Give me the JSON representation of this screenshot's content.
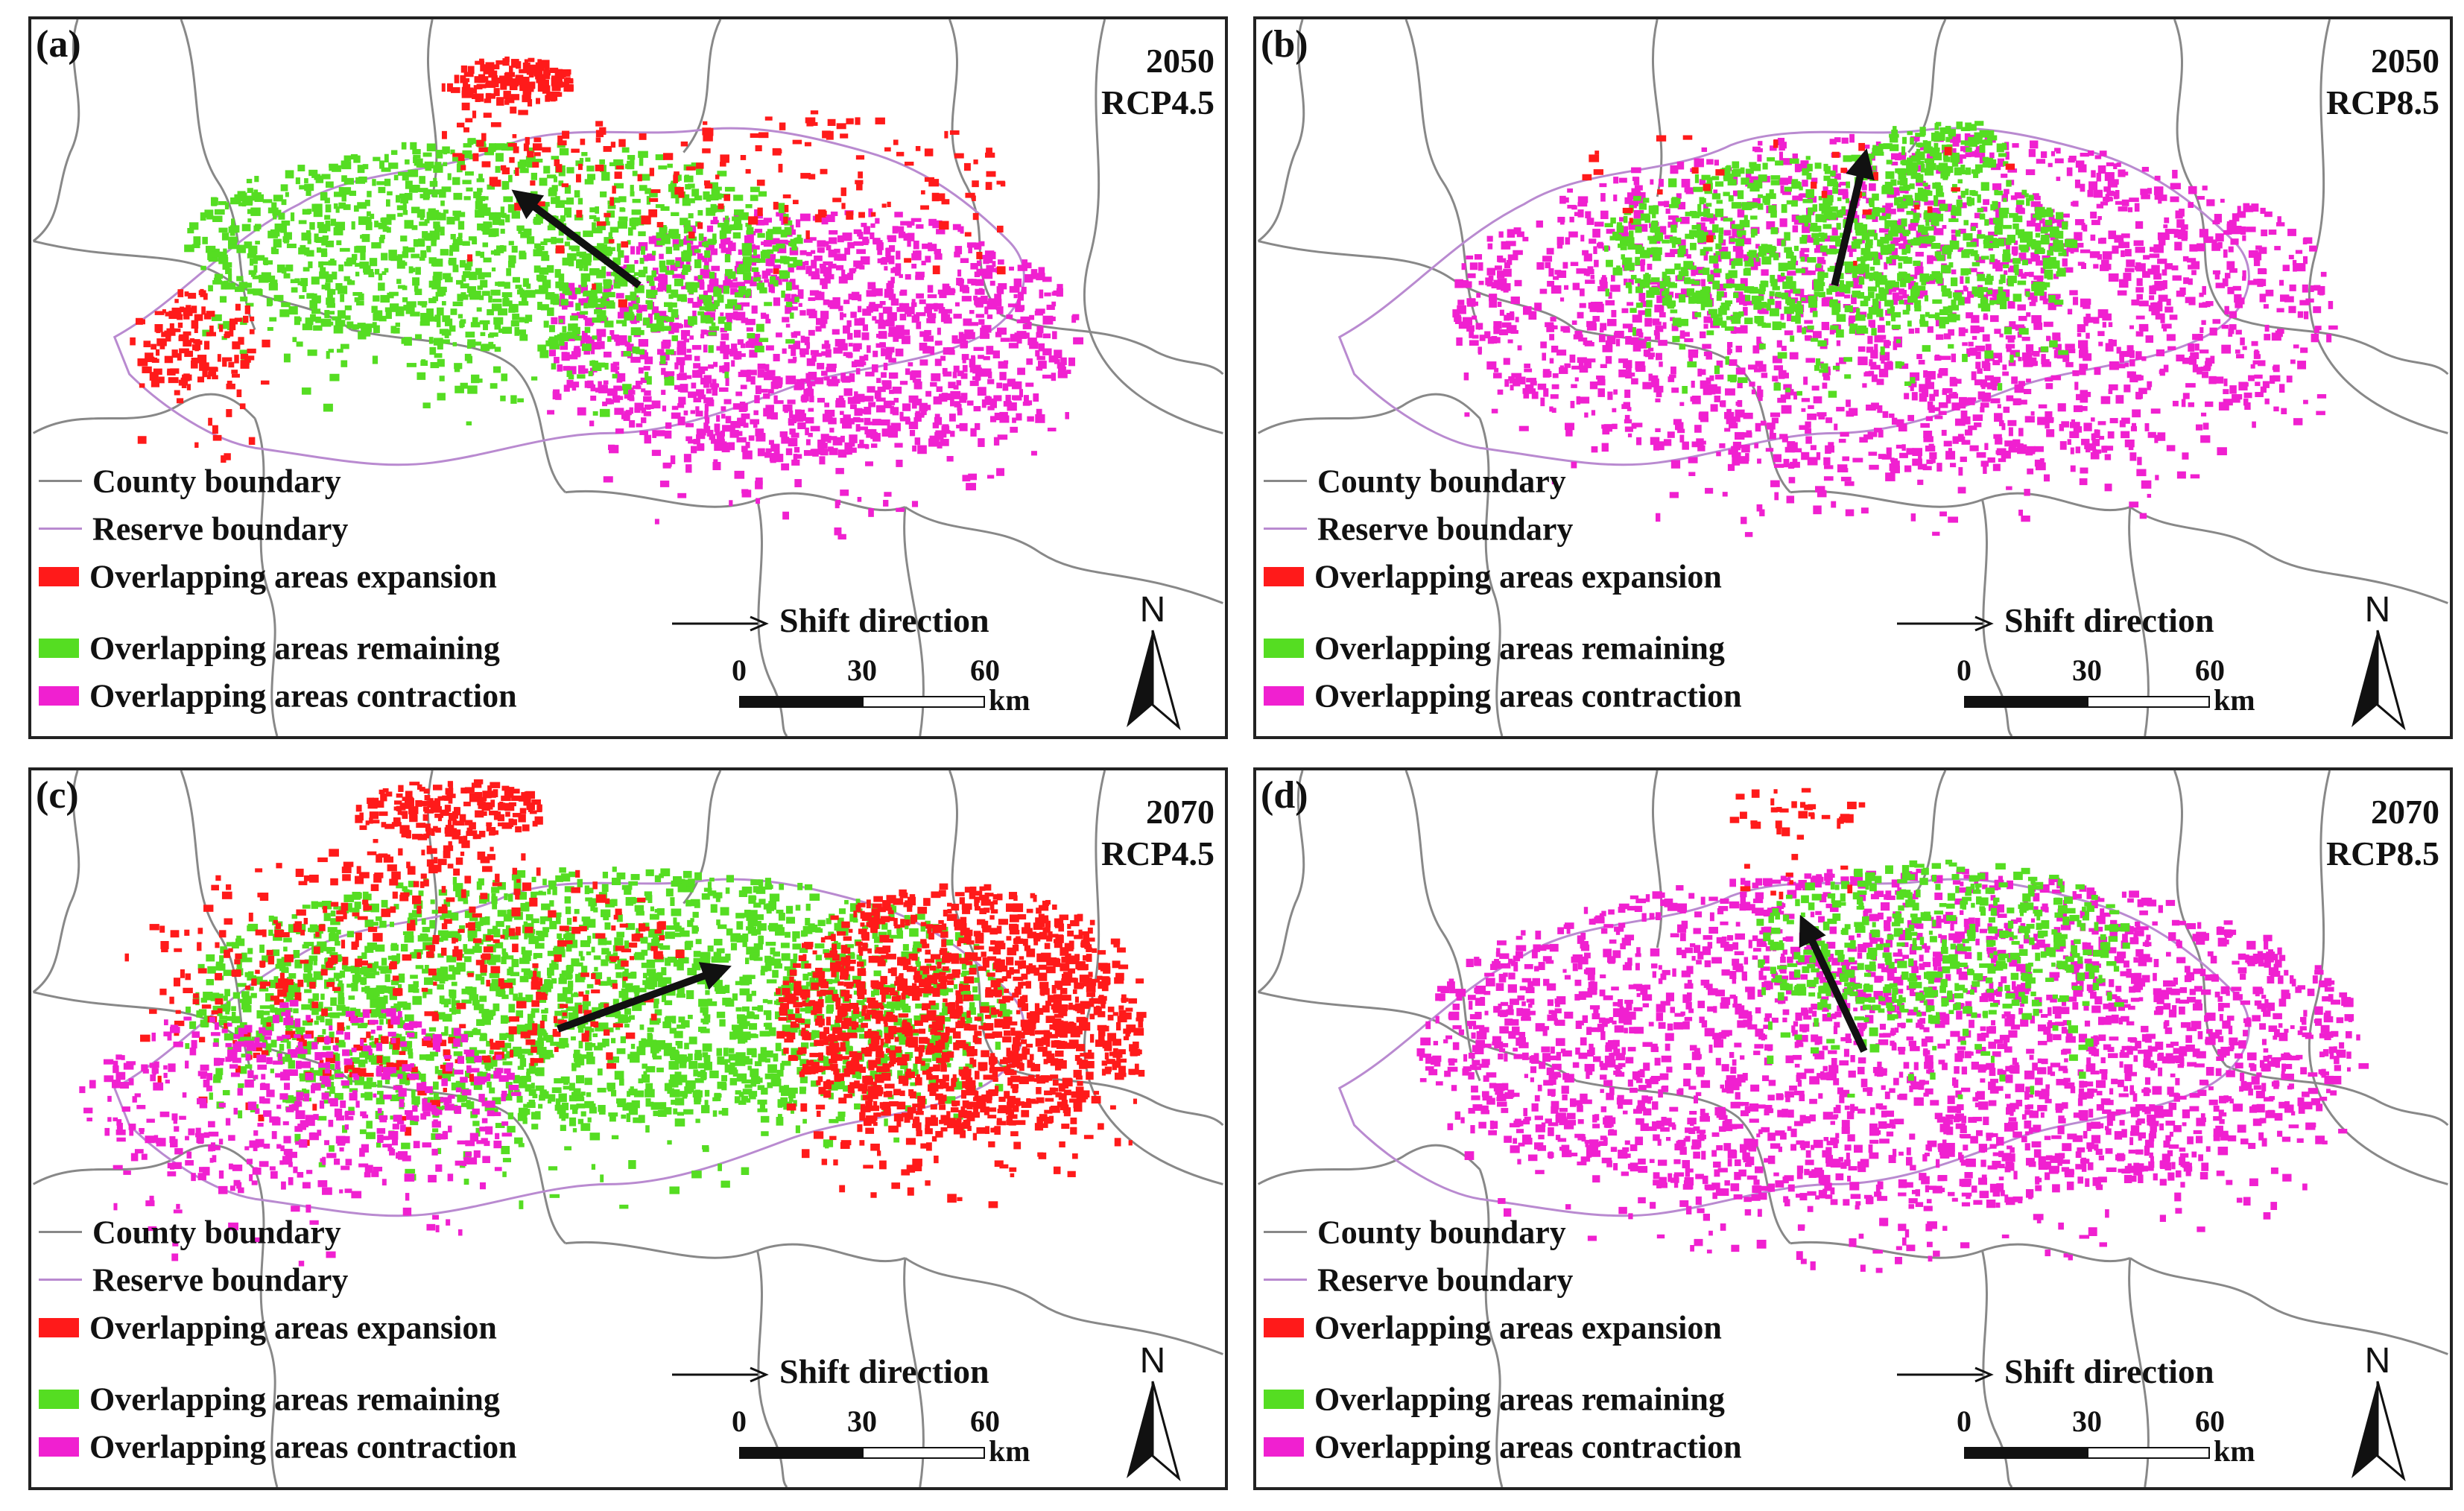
{
  "colors": {
    "expansion": "#ff1a1a",
    "remaining": "#55dd22",
    "contraction": "#f020d0",
    "county_boundary": "#888888",
    "reserve_boundary": "#b98ad0",
    "arrow": "#111111"
  },
  "legend": {
    "county_boundary": "County boundary",
    "reserve_boundary": "Reserve boundary",
    "expansion": "Overlapping areas expansion",
    "remaining": "Overlapping areas remaining",
    "contraction": "Overlapping areas contraction"
  },
  "shift_label": "Shift direction",
  "scale": {
    "ticks": [
      "0",
      "30",
      "60"
    ],
    "unit": "km"
  },
  "north_label": "N",
  "panels": [
    {
      "label": "(a)",
      "year": "2050",
      "scenario": "RCP4.5",
      "shift_arrow": {
        "direction": "northwest"
      }
    },
    {
      "label": "(b)",
      "year": "2050",
      "scenario": "RCP8.5",
      "shift_arrow": {
        "direction": "north-northeast"
      }
    },
    {
      "label": "(c)",
      "year": "2070",
      "scenario": "RCP4.5",
      "shift_arrow": {
        "direction": "east-northeast"
      }
    },
    {
      "label": "(d)",
      "year": "2070",
      "scenario": "RCP8.5",
      "shift_arrow": {
        "direction": "north-northwest"
      }
    }
  ]
}
